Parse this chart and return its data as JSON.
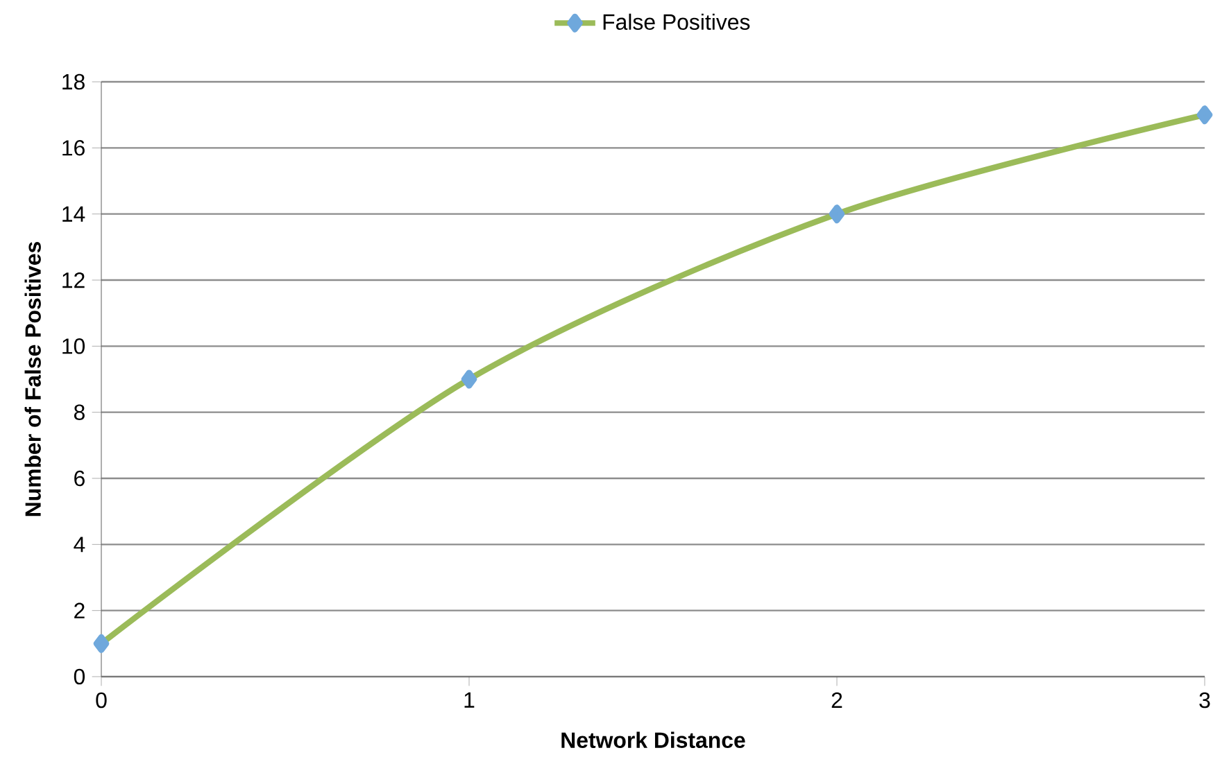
{
  "chart_data": {
    "type": "line",
    "xlabel": "Network Distance",
    "ylabel": "Number of False Positives",
    "x": [
      0,
      1,
      2,
      3
    ],
    "series": [
      {
        "name": "False Positives",
        "color": "#9bbb59",
        "colors": [
          "#6fa8dc",
          "#6fa8dc",
          "#6fa8dc",
          "#6fa8dc"
        ],
        "values": [
          1,
          9,
          14,
          17
        ]
      }
    ],
    "xlim": [
      0,
      3
    ],
    "xticks": [
      0,
      1,
      2,
      3
    ],
    "ylim": [
      0,
      18
    ],
    "yticks": [
      0,
      2,
      4,
      6,
      8,
      10,
      12,
      14,
      16,
      18
    ],
    "grid": "y",
    "legend": "top",
    "marker": "diamond",
    "line_style": "solid"
  }
}
